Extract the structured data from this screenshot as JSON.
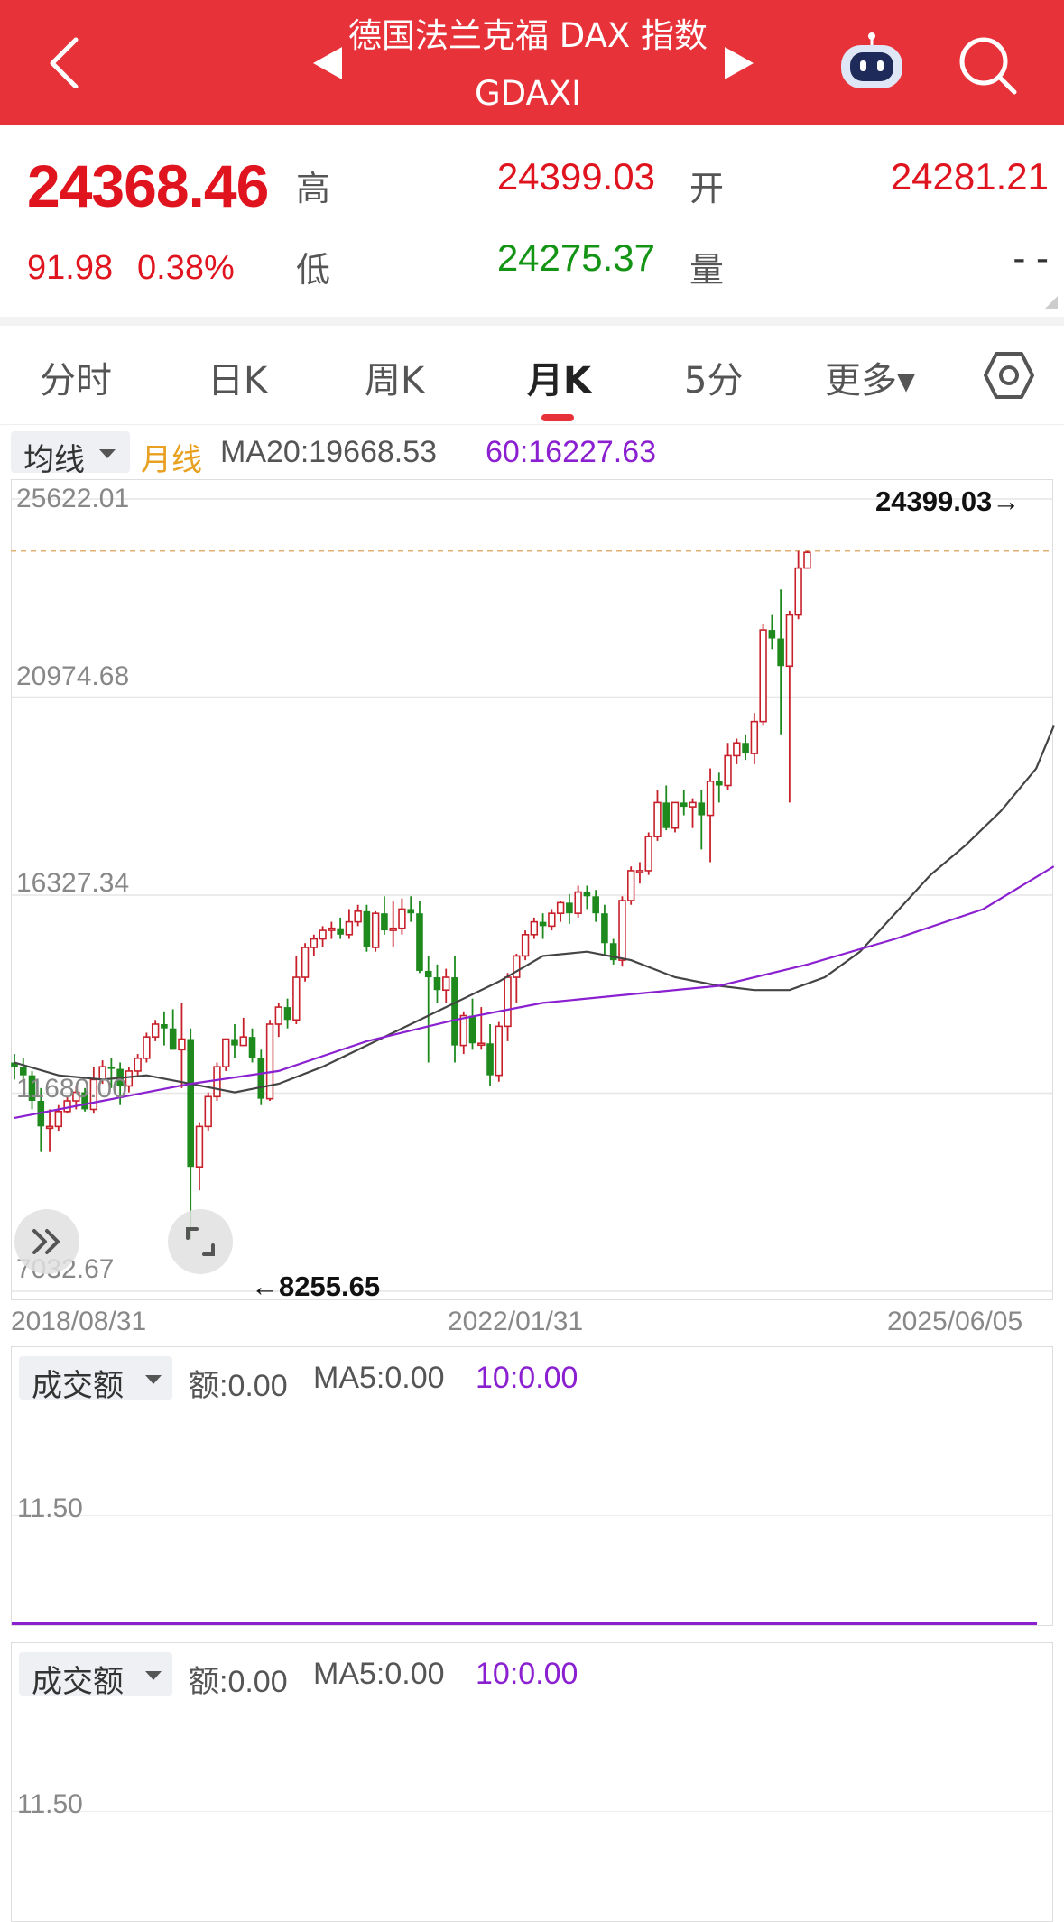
{
  "header": {
    "title": "德国法兰克福 DAX 指数",
    "subtitle": "GDAXI"
  },
  "quote": {
    "price": "24368.46",
    "change": "91.98",
    "change_pct": "0.38%",
    "high_label": "高",
    "high": "24399.03",
    "open_label": "开",
    "open": "24281.21",
    "low_label": "低",
    "low": "24275.37",
    "volume_label": "量",
    "volume": "- -"
  },
  "tabs": [
    {
      "label": "分时",
      "active": false
    },
    {
      "label": "日K",
      "active": false
    },
    {
      "label": "周K",
      "active": false
    },
    {
      "label": "月K",
      "active": true
    },
    {
      "label": "5分",
      "active": false
    },
    {
      "label": "更多▾",
      "active": false
    }
  ],
  "ma_bar": {
    "selector": "均线",
    "period": "月线",
    "ma20": "MA20:19668.53",
    "ma60": "60:16227.63"
  },
  "chart_data": {
    "type": "candlestick",
    "y_ticks": [
      "25622.01",
      "20974.68",
      "16327.34",
      "11680.00",
      "7032.67"
    ],
    "ylim": [
      7032.67,
      25622.01
    ],
    "x_ticks": [
      "2018/08/31",
      "2022/01/31",
      "2025/06/05"
    ],
    "max_label": "24399.03→",
    "min_label": "←8255.65",
    "candles": [
      [
        12400,
        12300,
        12600,
        12000
      ],
      [
        12300,
        12100,
        12500,
        11900
      ],
      [
        12100,
        11500,
        12200,
        11300
      ],
      [
        11500,
        10900,
        11800,
        10300
      ],
      [
        10900,
        10900,
        11300,
        10300
      ],
      [
        10900,
        11250,
        11400,
        10800
      ],
      [
        11250,
        11500,
        11600,
        11200
      ],
      [
        11500,
        11700,
        11850,
        11300
      ],
      [
        11700,
        11300,
        11800,
        11250
      ],
      [
        11300,
        12000,
        12300,
        11200
      ],
      [
        12000,
        12300,
        12450,
        11900
      ],
      [
        12300,
        12250,
        12500,
        11800
      ],
      [
        12250,
        11850,
        12400,
        11400
      ],
      [
        11850,
        12200,
        12300,
        11700
      ],
      [
        12200,
        12500,
        12600,
        12100
      ],
      [
        12500,
        13000,
        13100,
        12400
      ],
      [
        13000,
        13300,
        13400,
        12900
      ],
      [
        13300,
        13200,
        13600,
        12800
      ],
      [
        13200,
        12700,
        13650,
        12700
      ],
      [
        12700,
        12950,
        13800,
        11800
      ],
      [
        12950,
        9950,
        13200,
        8255.65
      ],
      [
        9950,
        10900,
        11000,
        9400
      ],
      [
        10900,
        11600,
        11700,
        10800
      ],
      [
        11600,
        12300,
        12400,
        11500
      ],
      [
        12300,
        12950,
        12950,
        12200
      ],
      [
        12950,
        12800,
        13300,
        12500
      ],
      [
        12800,
        13000,
        13450,
        12800
      ],
      [
        13000,
        12500,
        13200,
        12400
      ],
      [
        12500,
        11550,
        12700,
        11400
      ],
      [
        11550,
        13300,
        13400,
        11500
      ],
      [
        13300,
        13700,
        13800,
        13000
      ],
      [
        13700,
        13400,
        13900,
        13200
      ],
      [
        13400,
        14400,
        14900,
        13300
      ],
      [
        14400,
        15100,
        15200,
        14300
      ],
      [
        15100,
        15300,
        15400,
        14900
      ],
      [
        15300,
        15500,
        15600,
        15100
      ],
      [
        15500,
        15550,
        15700,
        15300
      ],
      [
        15550,
        15400,
        15800,
        15300
      ],
      [
        15400,
        15700,
        16000,
        15300
      ],
      [
        15700,
        15950,
        16100,
        15600
      ],
      [
        15950,
        15100,
        16100,
        15000
      ],
      [
        15100,
        15900,
        15950,
        15000
      ],
      [
        15900,
        15500,
        16300,
        15400
      ],
      [
        15500,
        15550,
        16200,
        15100
      ],
      [
        15550,
        16000,
        16250,
        15400
      ],
      [
        16000,
        15900,
        16300,
        15700
      ],
      [
        15900,
        14550,
        16200,
        14500
      ],
      [
        14550,
        14400,
        14900,
        12400
      ],
      [
        14400,
        14100,
        14700,
        13800
      ],
      [
        14100,
        14400,
        14600,
        13800
      ],
      [
        14400,
        12800,
        14900,
        12400
      ],
      [
        12800,
        13500,
        13600,
        12600
      ],
      [
        13500,
        12850,
        13900,
        12700
      ],
      [
        12850,
        12850,
        13700,
        12700
      ],
      [
        12850,
        12100,
        13300,
        11860
      ],
      [
        12100,
        13250,
        13350,
        11950
      ],
      [
        13250,
        14400,
        14500,
        12900
      ],
      [
        14400,
        14900,
        14950,
        13800
      ],
      [
        14900,
        15400,
        15500,
        14800
      ],
      [
        15400,
        15700,
        15800,
        15300
      ],
      [
        15700,
        15600,
        15900,
        15300
      ],
      [
        15600,
        15900,
        16000,
        15500
      ],
      [
        15900,
        16150,
        16200,
        15700
      ],
      [
        16150,
        15900,
        16350,
        15650
      ],
      [
        15900,
        16400,
        16550,
        15800
      ],
      [
        16400,
        16300,
        16550,
        16000
      ],
      [
        16300,
        15900,
        16450,
        15700
      ],
      [
        15900,
        15200,
        16100,
        14900
      ],
      [
        15200,
        14800,
        15300,
        14700
      ],
      [
        14800,
        16200,
        16300,
        14650
      ],
      [
        16200,
        16900,
        17000,
        16100
      ],
      [
        16900,
        16900,
        17100,
        16600
      ],
      [
        16900,
        17700,
        17800,
        16800
      ],
      [
        17700,
        18500,
        18800,
        17600
      ],
      [
        18500,
        17900,
        18900,
        17850
      ],
      [
        17900,
        18500,
        18500,
        17800
      ],
      [
        18500,
        18400,
        18800,
        18200
      ],
      [
        18400,
        18500,
        18600,
        17900
      ],
      [
        18500,
        18200,
        18800,
        17400
      ],
      [
        18200,
        19000,
        19300,
        17100
      ],
      [
        19000,
        18900,
        19200,
        18500
      ],
      [
        18900,
        19600,
        19900,
        18800
      ],
      [
        19600,
        19900,
        20000,
        19400
      ],
      [
        19900,
        19650,
        20100,
        19500
      ],
      [
        19650,
        20400,
        20600,
        19400
      ],
      [
        20400,
        22550,
        22700,
        20300
      ],
      [
        22550,
        22350,
        22900,
        22100
      ],
      [
        22350,
        21700,
        23500,
        20100
      ],
      [
        21700,
        22900,
        23000,
        18500
      ],
      [
        22900,
        24000,
        24400,
        22800
      ],
      [
        24000,
        24368,
        24399.03,
        24200
      ]
    ],
    "ma20": [
      [
        0,
        12400
      ],
      [
        5,
        12100
      ],
      [
        10,
        12000
      ],
      [
        15,
        12100
      ],
      [
        20,
        11900
      ],
      [
        25,
        11700
      ],
      [
        30,
        11900
      ],
      [
        35,
        12300
      ],
      [
        40,
        12800
      ],
      [
        45,
        13300
      ],
      [
        50,
        13800
      ],
      [
        55,
        14300
      ],
      [
        60,
        14900
      ],
      [
        65,
        15000
      ],
      [
        70,
        14800
      ],
      [
        75,
        14400
      ],
      [
        80,
        14200
      ],
      [
        84,
        14100
      ],
      [
        88,
        14100
      ],
      [
        92,
        14400
      ],
      [
        96,
        15000
      ],
      [
        100,
        15900
      ],
      [
        104,
        16800
      ],
      [
        108,
        17500
      ],
      [
        112,
        18300
      ],
      [
        116,
        19300
      ],
      [
        118,
        20300
      ]
    ],
    "ma60": [
      [
        0,
        11100
      ],
      [
        10,
        11500
      ],
      [
        20,
        11900
      ],
      [
        30,
        12200
      ],
      [
        40,
        12900
      ],
      [
        50,
        13400
      ],
      [
        60,
        13800
      ],
      [
        70,
        14000
      ],
      [
        80,
        14200
      ],
      [
        90,
        14700
      ],
      [
        100,
        15300
      ],
      [
        110,
        16000
      ],
      [
        114,
        16500
      ],
      [
        118,
        17000
      ]
    ]
  },
  "volume_panels": [
    {
      "selector": "成交额",
      "amount": "额:0.00",
      "ma5": "MA5:0.00",
      "ma10": "10:0.00",
      "y_tick": "11.50"
    },
    {
      "selector": "成交额",
      "amount": "额:0.00",
      "ma5": "MA5:0.00",
      "ma10": "10:0.00",
      "y_tick": "11.50"
    }
  ],
  "colors": {
    "header": "#e8323a",
    "up": "#c8202a",
    "down": "#1e8a1e",
    "ma20": "#444444",
    "ma60": "#8a20d0",
    "period_label": "#e8a020"
  }
}
